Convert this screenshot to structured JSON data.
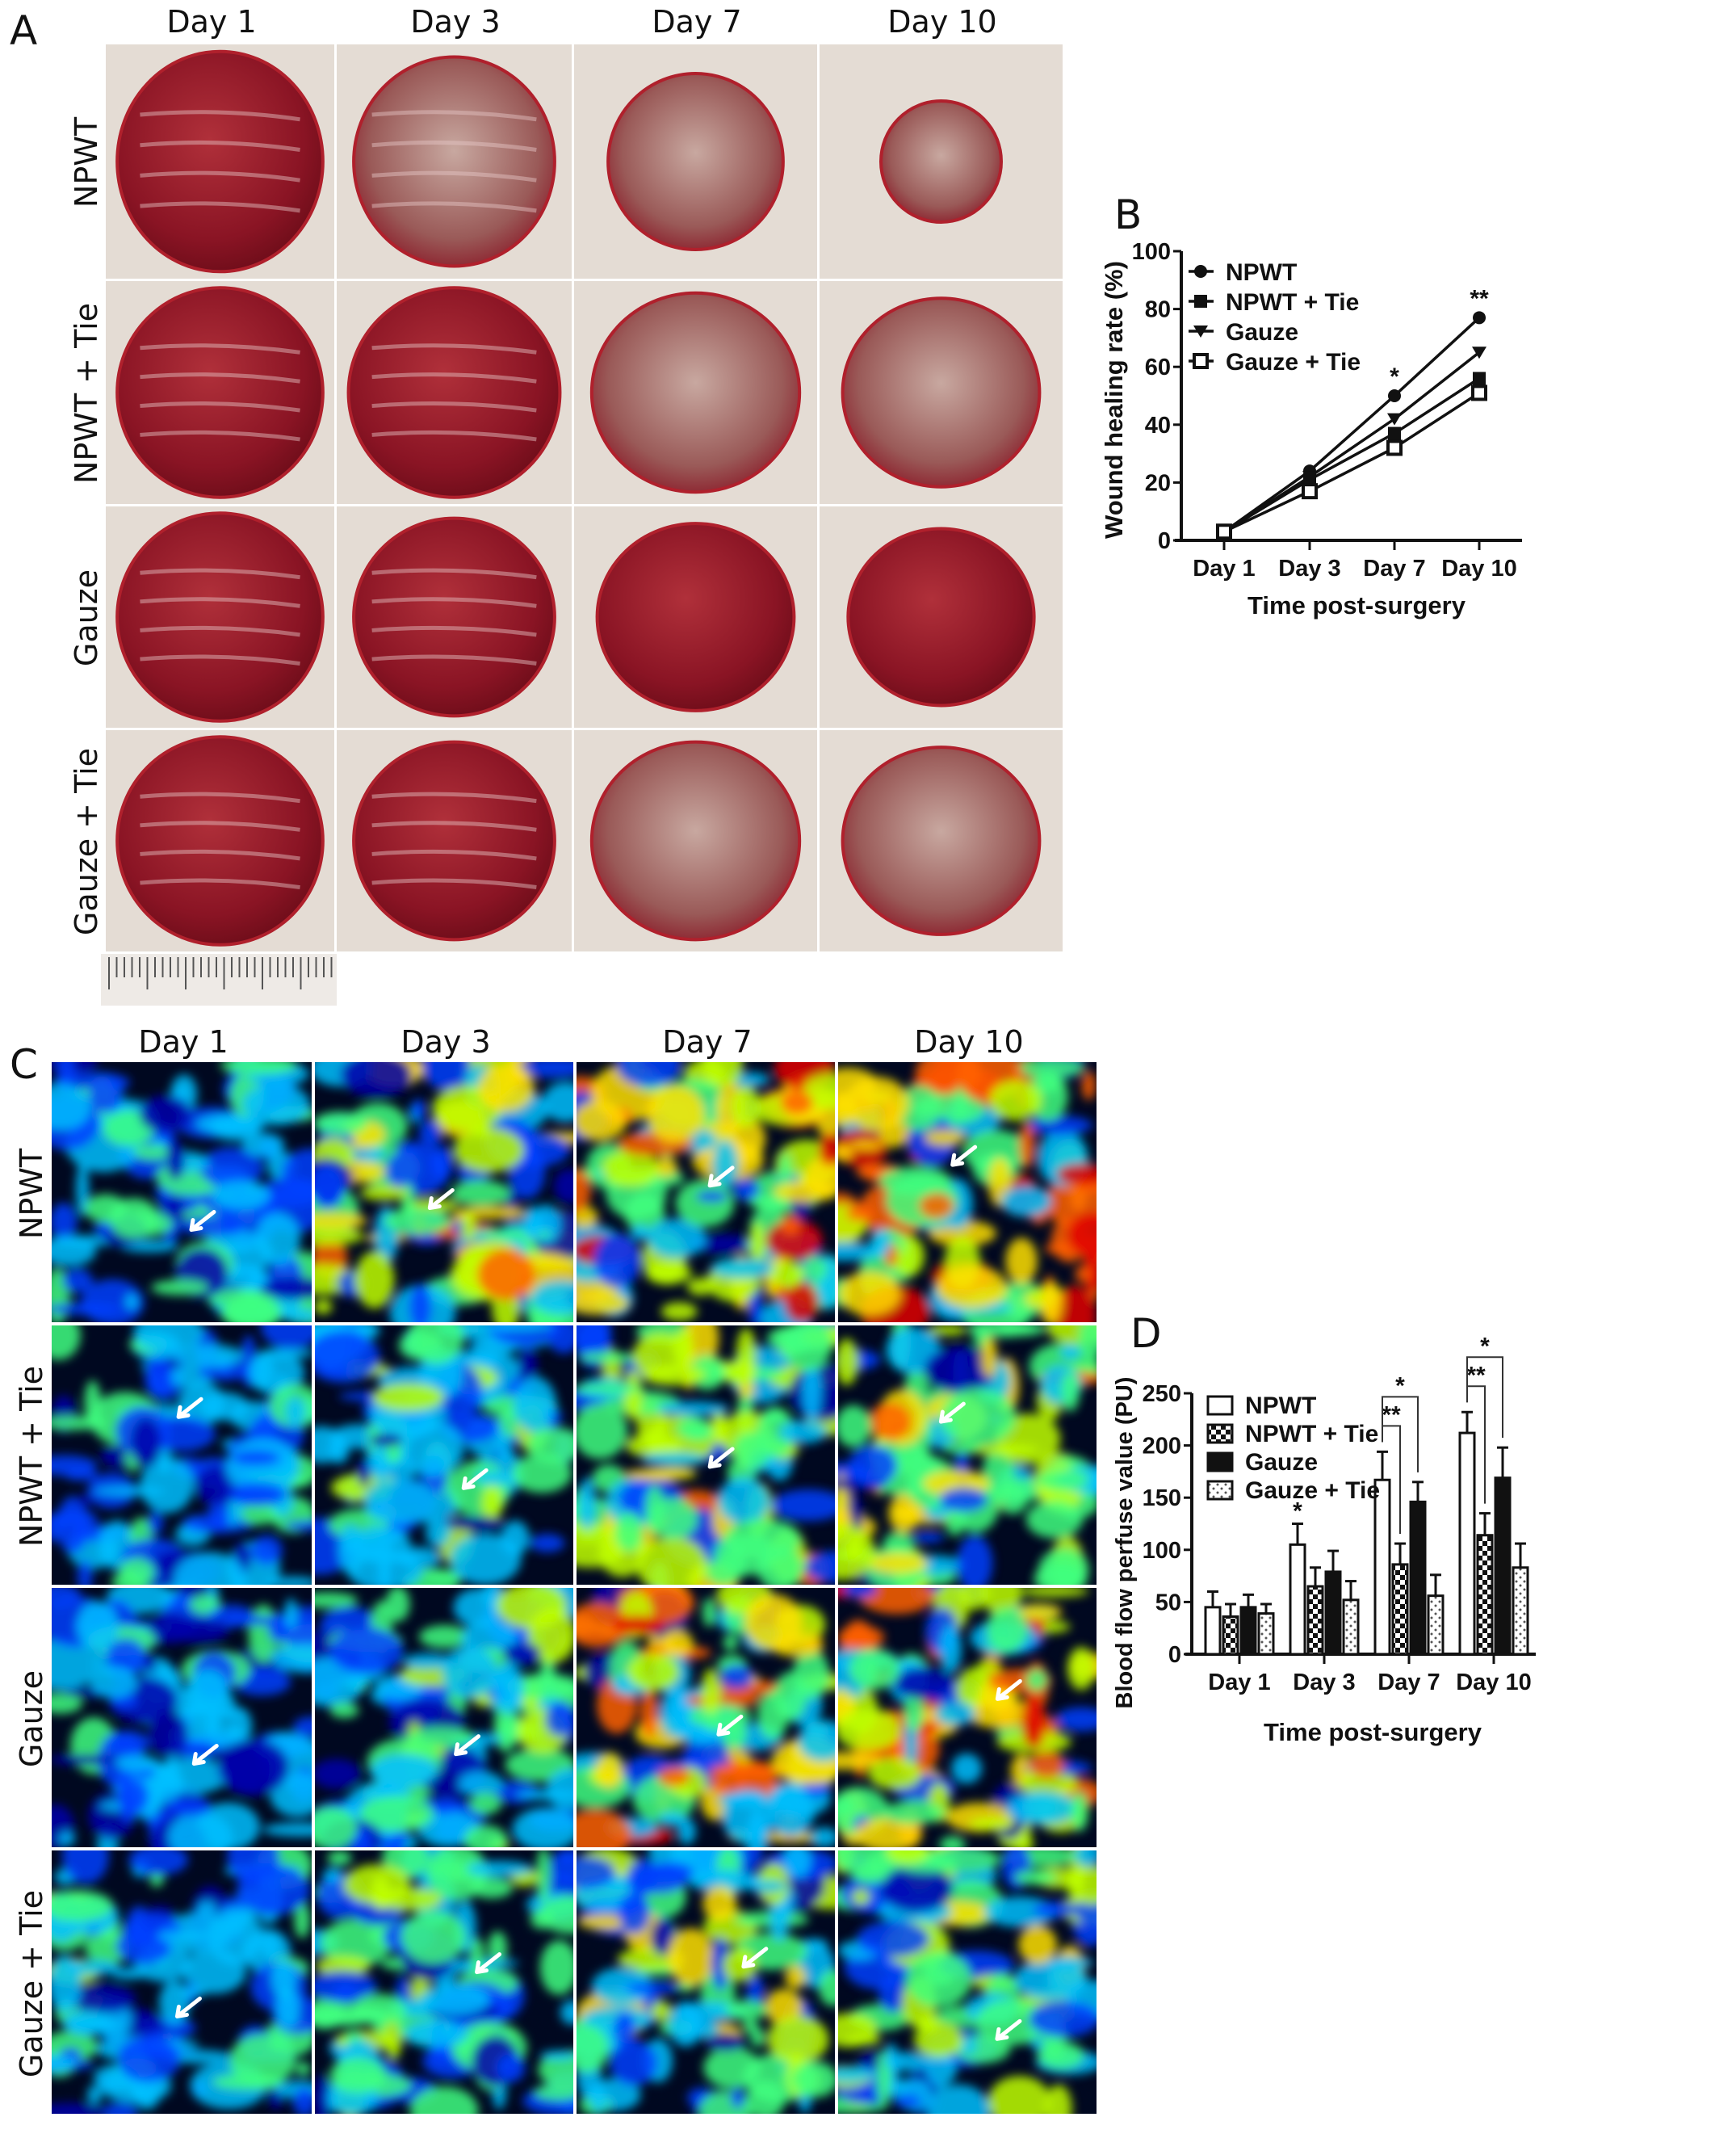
{
  "panel_labels": {
    "a": "A",
    "b": "B",
    "c": "C",
    "d": "D"
  },
  "days": [
    "Day 1",
    "Day 3",
    "Day 7",
    "Day 10"
  ],
  "groups": [
    "NPWT",
    "NPWT + Tie",
    "Gauze",
    "Gauze + Tie"
  ],
  "colors": {
    "wound": "#8e1020",
    "skin": "#e6ded6",
    "axis": "#111111"
  },
  "chart_data": [
    {
      "type": "line",
      "title": "",
      "xlabel": "Time post-surgery",
      "ylabel": "Wound healing rate (%)",
      "categories": [
        "Day 1",
        "Day 3",
        "Day 7",
        "Day 10"
      ],
      "ylim": [
        0,
        100
      ],
      "yticks": [
        "0",
        "20",
        "40",
        "60",
        "80",
        "100"
      ],
      "legend": "top-left",
      "series": [
        {
          "name": "NPWT",
          "marker": "circle",
          "values": [
            3,
            24,
            50,
            77
          ]
        },
        {
          "name": "NPWT + Tie",
          "marker": "square",
          "values": [
            3,
            21,
            37,
            56
          ]
        },
        {
          "name": "Gauze",
          "marker": "triangle-down",
          "values": [
            3,
            22,
            42,
            65
          ]
        },
        {
          "name": "Gauze + Tie",
          "marker": "open-square",
          "values": [
            3,
            17,
            32,
            51
          ]
        }
      ],
      "annotations": [
        {
          "category": "Day 7",
          "text": "*"
        },
        {
          "category": "Day 10",
          "text": "**"
        }
      ]
    },
    {
      "type": "bar",
      "title": "",
      "xlabel": "Time post-surgery",
      "ylabel": "Blood flow perfuse value (PU)",
      "categories": [
        "Day 1",
        "Day 3",
        "Day 7",
        "Day 10"
      ],
      "ylim": [
        0,
        250
      ],
      "yticks": [
        "0",
        "50",
        "100",
        "150",
        "200",
        "250"
      ],
      "legend": "top-left",
      "series": [
        {
          "name": "NPWT",
          "pattern": "open",
          "values": [
            45,
            105,
            167,
            212
          ],
          "errors": [
            15,
            20,
            27,
            20
          ]
        },
        {
          "name": "NPWT + Tie",
          "pattern": "checker",
          "values": [
            36,
            65,
            86,
            114
          ],
          "errors": [
            12,
            18,
            20,
            21
          ]
        },
        {
          "name": "Gauze",
          "pattern": "solid",
          "values": [
            45,
            79,
            146,
            169
          ],
          "errors": [
            12,
            20,
            19,
            29
          ]
        },
        {
          "name": "Gauze + Tie",
          "pattern": "dots",
          "values": [
            39,
            52,
            56,
            83
          ],
          "errors": [
            9,
            18,
            20,
            23
          ]
        }
      ],
      "annotations": [
        {
          "category": "Day 3",
          "text": "*",
          "type": "above-bar",
          "series": 0
        },
        {
          "category": "Day 7",
          "text": "**",
          "type": "bracket",
          "from": 0,
          "to": 1
        },
        {
          "category": "Day 7",
          "text": "*",
          "type": "bracket",
          "from": 0,
          "to": 2
        },
        {
          "category": "Day 10",
          "text": "**",
          "type": "bracket",
          "from": 0,
          "to": 1
        },
        {
          "category": "Day 10",
          "text": "*",
          "type": "bracket",
          "from": 0,
          "to": 2
        }
      ]
    }
  ]
}
